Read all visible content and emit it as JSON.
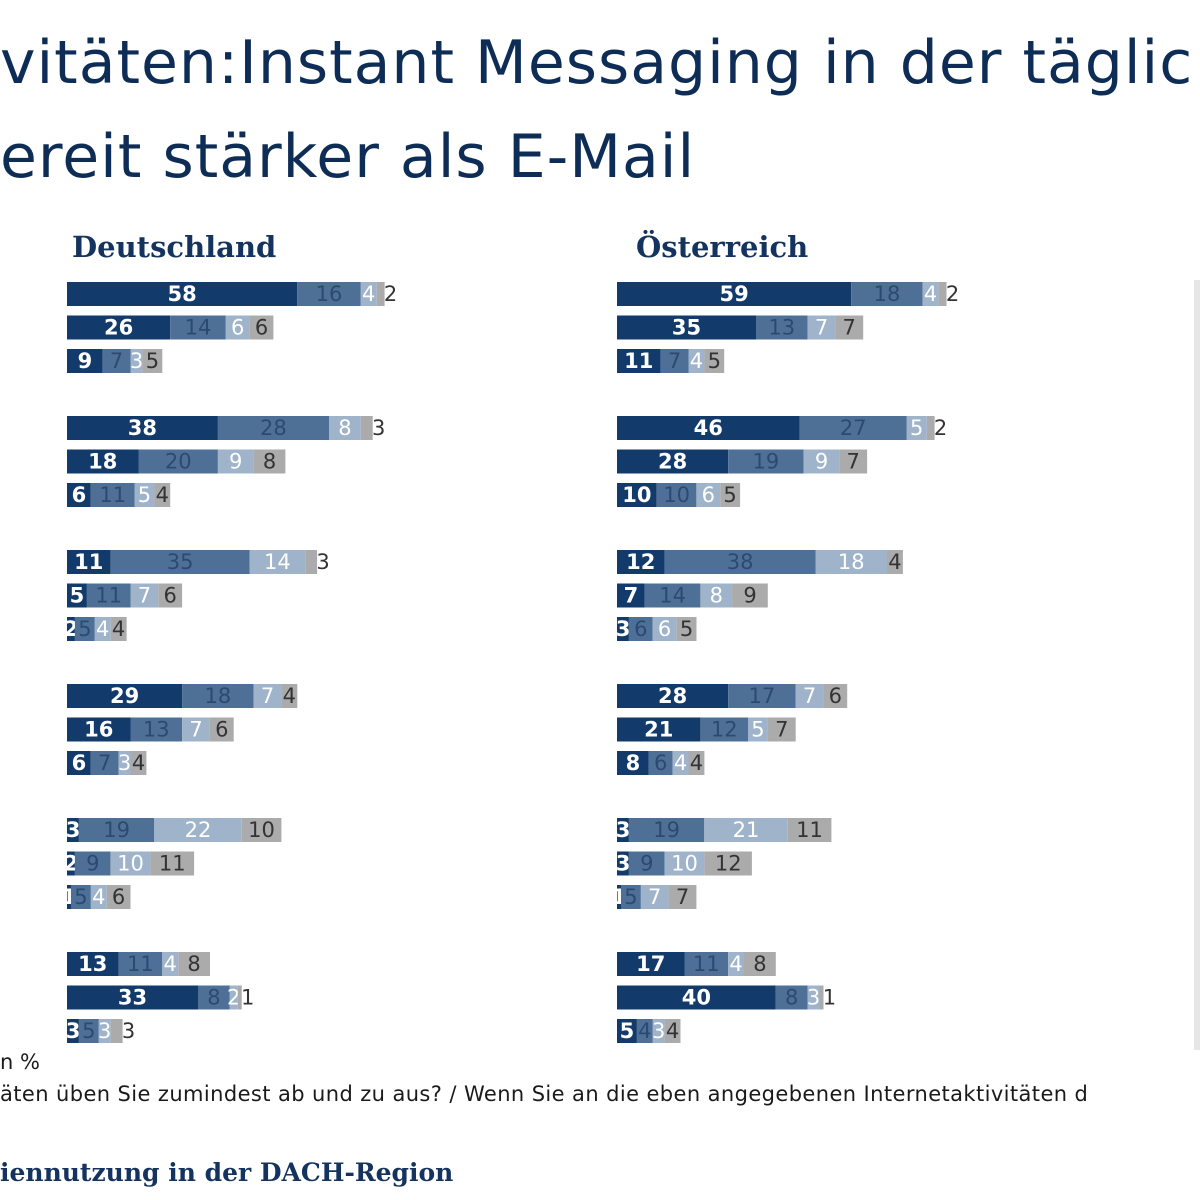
{
  "title": {
    "line1": "vitäten:Instant Messaging in der täglic",
    "line2": "ereit stärker als E-Mail"
  },
  "chart_data": {
    "type": "bar",
    "stacked": true,
    "orientation": "horizontal",
    "colors": [
      "#123a6b",
      "#4e7097",
      "#9fb4cb",
      "#ababab"
    ],
    "label_colors": [
      "#ffffff",
      "#2b4a72",
      "#ffffff",
      "#333333"
    ],
    "panels": [
      {
        "name": "Deutschland",
        "groups": [
          [
            [
              58,
              16,
              4,
              2
            ],
            [
              26,
              14,
              6,
              6
            ],
            [
              9,
              7,
              3,
              5
            ]
          ],
          [
            [
              38,
              28,
              8,
              3
            ],
            [
              18,
              20,
              9,
              8
            ],
            [
              6,
              11,
              5,
              4
            ]
          ],
          [
            [
              11,
              35,
              14,
              3
            ],
            [
              5,
              11,
              7,
              6
            ],
            [
              2,
              5,
              4,
              4
            ]
          ],
          [
            [
              29,
              18,
              7,
              4
            ],
            [
              16,
              13,
              7,
              6
            ],
            [
              6,
              7,
              3,
              4
            ]
          ],
          [
            [
              3,
              19,
              22,
              10
            ],
            [
              2,
              9,
              10,
              11
            ],
            [
              1,
              5,
              4,
              6
            ]
          ],
          [
            [
              13,
              11,
              4,
              8
            ],
            [
              33,
              8,
              2,
              1
            ],
            [
              3,
              5,
              3,
              3
            ]
          ]
        ]
      },
      {
        "name": "Österreich",
        "groups": [
          [
            [
              59,
              18,
              4,
              2
            ],
            [
              35,
              13,
              7,
              7
            ],
            [
              11,
              7,
              4,
              5
            ]
          ],
          [
            [
              46,
              27,
              5,
              2
            ],
            [
              28,
              19,
              9,
              7
            ],
            [
              10,
              10,
              6,
              5
            ]
          ],
          [
            [
              12,
              38,
              18,
              4
            ],
            [
              7,
              14,
              8,
              9
            ],
            [
              3,
              6,
              6,
              5
            ]
          ],
          [
            [
              28,
              17,
              7,
              6
            ],
            [
              21,
              12,
              5,
              7
            ],
            [
              8,
              6,
              4,
              4
            ]
          ],
          [
            [
              3,
              19,
              21,
              11
            ],
            [
              3,
              9,
              10,
              12
            ],
            [
              1,
              5,
              7,
              7
            ]
          ],
          [
            [
              17,
              11,
              4,
              8
            ],
            [
              40,
              8,
              3,
              1
            ],
            [
              5,
              4,
              3,
              4
            ]
          ]
        ]
      }
    ]
  },
  "footer": {
    "unit": "n %",
    "question": "äten üben Sie zumindest ab und zu aus? / Wenn Sie an die eben angegebenen Internetaktivitäten d",
    "source": "iennutzung in der DACH-Region"
  }
}
